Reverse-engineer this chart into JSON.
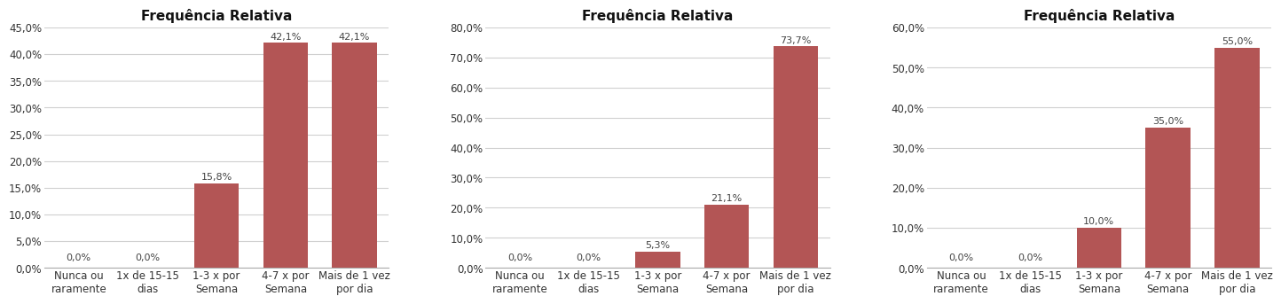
{
  "title": "Frequência Relativa",
  "bar_color": "#b35555",
  "categories": [
    "Nunca ou\nraramente",
    "1x de 15-15\ndias",
    "1-3 x por\nSemana",
    "4-7 x por\nSemana",
    "Mais de 1 vez\npor dia"
  ],
  "charts": [
    {
      "values": [
        0.0,
        0.0,
        15.8,
        42.1,
        42.1
      ],
      "ylim": [
        0,
        45
      ],
      "yticks": [
        0,
        5,
        10,
        15,
        20,
        25,
        30,
        35,
        40,
        45
      ],
      "labels": [
        "0,0%",
        "0,0%",
        "15,8%",
        "42,1%",
        "42,1%"
      ]
    },
    {
      "values": [
        0.0,
        0.0,
        5.3,
        21.1,
        73.7
      ],
      "ylim": [
        0,
        80
      ],
      "yticks": [
        0,
        10,
        20,
        30,
        40,
        50,
        60,
        70,
        80
      ],
      "labels": [
        "0,0%",
        "0,0%",
        "5,3%",
        "21,1%",
        "73,7%"
      ]
    },
    {
      "values": [
        0.0,
        0.0,
        10.0,
        35.0,
        55.0
      ],
      "ylim": [
        0,
        60
      ],
      "yticks": [
        0,
        10,
        20,
        30,
        40,
        50,
        60
      ],
      "labels": [
        "0,0%",
        "0,0%",
        "10,0%",
        "35,0%",
        "55,0%"
      ]
    }
  ],
  "background_color": "#ffffff",
  "grid_color": "#d0d0d0",
  "title_fontsize": 11,
  "tick_fontsize": 8.5,
  "label_fontsize": 8
}
